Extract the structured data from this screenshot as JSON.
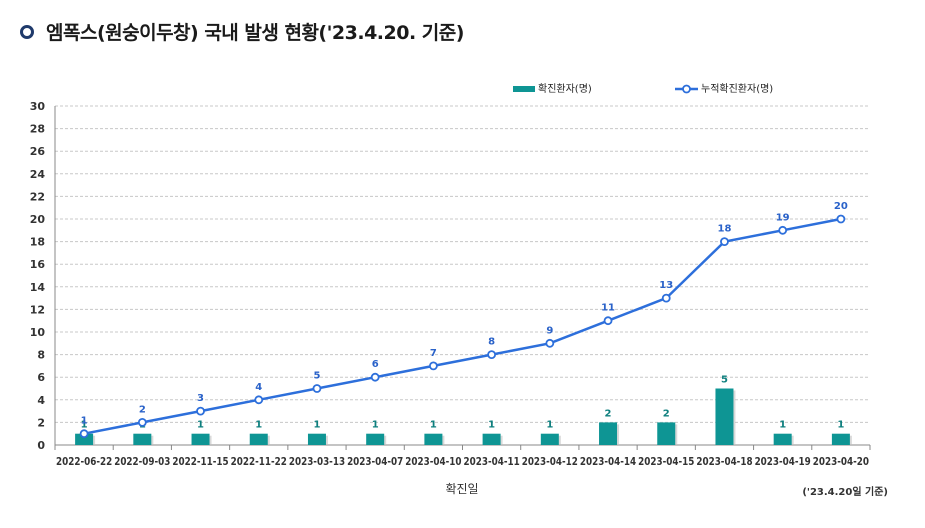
{
  "header": {
    "title": "엠폭스(원숭이두창) 국내 발생 현황('23.4.20. 기준)"
  },
  "chart_data": {
    "type": "bar+line",
    "categories": [
      "2022-06-22",
      "2022-09-03",
      "2022-11-15",
      "2022-11-22",
      "2023-03-13",
      "2023-04-07",
      "2023-04-10",
      "2023-04-11",
      "2023-04-12",
      "2023-04-14",
      "2023-04-15",
      "2023-04-18",
      "2023-04-19",
      "2023-04-20"
    ],
    "series": [
      {
        "name": "확진환자(명)",
        "type": "bar",
        "color": "#0e9594",
        "values": [
          1,
          1,
          1,
          1,
          1,
          1,
          1,
          1,
          1,
          2,
          2,
          5,
          1,
          1
        ]
      },
      {
        "name": "누적확진환자(명)",
        "type": "line",
        "color": "#2d6fdb",
        "values": [
          1,
          2,
          3,
          4,
          5,
          6,
          7,
          8,
          9,
          11,
          13,
          18,
          19,
          20
        ]
      }
    ],
    "xlabel": "확진일",
    "ylabel": "",
    "ylim": [
      0,
      30
    ],
    "yticks": [
      0,
      2,
      4,
      6,
      8,
      10,
      12,
      14,
      16,
      18,
      20,
      22,
      24,
      26,
      28,
      30
    ],
    "footnote": "('23.4.20일 기준)",
    "legend_position": "top-right",
    "grid": true
  }
}
